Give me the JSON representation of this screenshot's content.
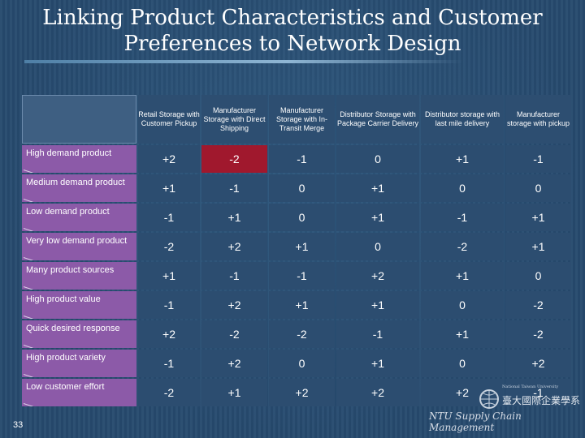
{
  "slide": {
    "title_line1": "Linking Product Characteristics and Customer",
    "title_line2": "Preferences to Network Design",
    "page_number": "33",
    "footer": "NTU Supply Chain Management",
    "logo_text_top": "National Taiwan University",
    "logo_text_main": "臺大國際企業學系"
  },
  "table": {
    "columns": [
      "Retail Storage with Customer Pickup",
      "Manufacturer Storage with Direct Shipping",
      "Manufacturer Storage with In-Transit Merge",
      "Distributor Storage with Package Carrier Delivery",
      "Distributor storage with last mile delivery",
      "Manufacturer storage with pickup"
    ],
    "rows": [
      {
        "label": "High demand product",
        "values": [
          "+2",
          "-2",
          "-1",
          "0",
          "+1",
          "-1"
        ]
      },
      {
        "label": "Medium demand product",
        "values": [
          "+1",
          "-1",
          "0",
          "+1",
          "0",
          "0"
        ]
      },
      {
        "label": "Low demand product",
        "values": [
          "-1",
          "+1",
          "0",
          "+1",
          "-1",
          "+1"
        ]
      },
      {
        "label": "Very low demand product",
        "values": [
          "-2",
          "+2",
          "+1",
          "0",
          "-2",
          "+1"
        ]
      },
      {
        "label": "Many product sources",
        "values": [
          "+1",
          "-1",
          "-1",
          "+2",
          "+1",
          "0"
        ]
      },
      {
        "label": "High product value",
        "values": [
          "-1",
          "+2",
          "+1",
          "+1",
          "0",
          "-2"
        ]
      },
      {
        "label": "Quick desired response",
        "values": [
          "+2",
          "-2",
          "-2",
          "-1",
          "+1",
          "-2"
        ]
      },
      {
        "label": "High product variety",
        "values": [
          "-1",
          "+2",
          "0",
          "+1",
          "0",
          "+2"
        ]
      },
      {
        "label": "Low customer effort",
        "values": [
          "-2",
          "+1",
          "+2",
          "+2",
          "+2",
          "-1"
        ]
      }
    ]
  },
  "colors": {
    "background": "#264a6e",
    "row_header": "#8c5aa8",
    "cell": "#2c4d70",
    "highlight": "#a0182d"
  }
}
